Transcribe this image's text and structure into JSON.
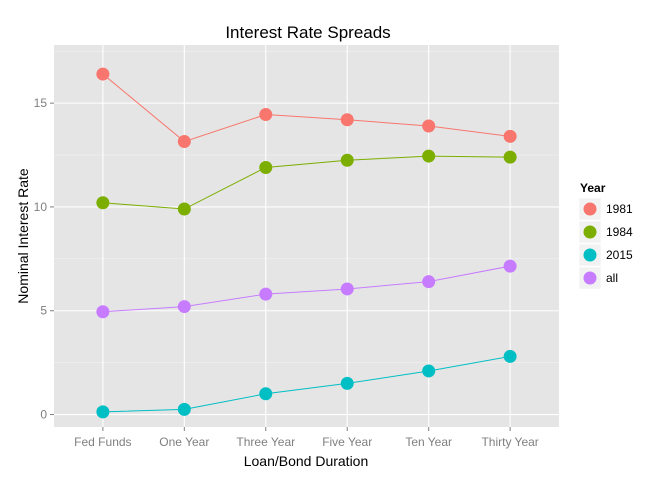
{
  "chart_data": {
    "type": "line",
    "title": "Interest Rate Spreads",
    "xlabel": "Loan/Bond Duration",
    "ylabel": "Nominal Interest Rate",
    "categories": [
      "Fed Funds",
      "One Year",
      "Three Year",
      "Five Year",
      "Ten Year",
      "Thirty Year"
    ],
    "ylim": [
      -0.6,
      17.8
    ],
    "yticks": [
      0,
      5,
      10,
      15
    ],
    "grid": true,
    "legend": {
      "title": "Year",
      "position": "right"
    },
    "series": [
      {
        "name": "1981",
        "color": "#F8766D",
        "values": [
          16.4,
          13.15,
          14.45,
          14.2,
          13.9,
          13.4
        ]
      },
      {
        "name": "1984",
        "color": "#7CAE00",
        "values": [
          10.2,
          9.9,
          11.9,
          12.25,
          12.45,
          12.4
        ]
      },
      {
        "name": "2015",
        "color": "#00BFC4",
        "values": [
          0.13,
          0.25,
          1.0,
          1.5,
          2.1,
          2.8
        ]
      },
      {
        "name": "all",
        "color": "#C77CFF",
        "values": [
          4.95,
          5.2,
          5.8,
          6.05,
          6.4,
          7.15
        ]
      }
    ]
  }
}
